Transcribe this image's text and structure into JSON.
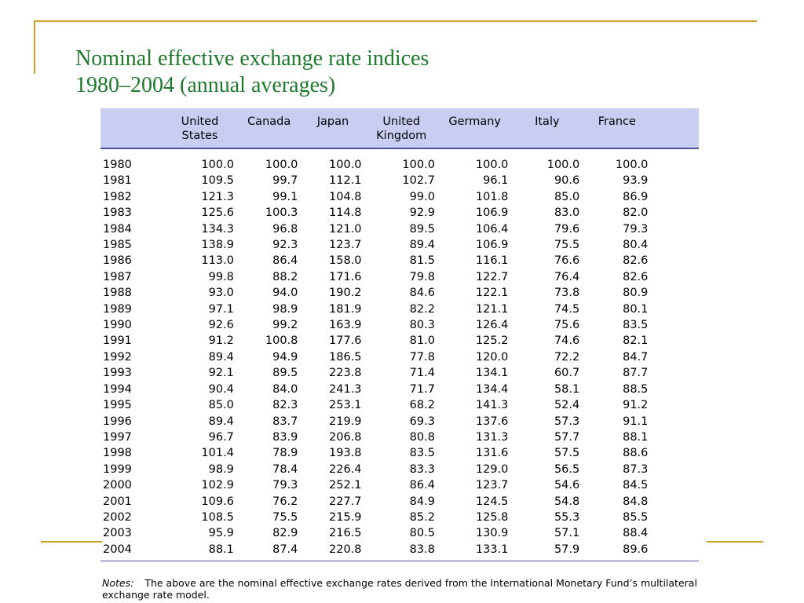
{
  "title": {
    "line1": "Nominal effective exchange rate indices",
    "line2": "1980–2004 (annual averages)"
  },
  "table": {
    "headers": [
      {
        "line1": "United",
        "line2": "States"
      },
      {
        "line1": "Canada",
        "line2": ""
      },
      {
        "line1": "Japan",
        "line2": ""
      },
      {
        "line1": "United",
        "line2": "Kingdom"
      },
      {
        "line1": "Germany",
        "line2": ""
      },
      {
        "line1": "Italy",
        "line2": ""
      },
      {
        "line1": "France",
        "line2": ""
      }
    ],
    "rows": [
      [
        "1980",
        "100.0",
        "100.0",
        "100.0",
        "100.0",
        "100.0",
        "100.0",
        "100.0"
      ],
      [
        "1981",
        "109.5",
        "99.7",
        "112.1",
        "102.7",
        "96.1",
        "90.6",
        "93.9"
      ],
      [
        "1982",
        "121.3",
        "99.1",
        "104.8",
        "99.0",
        "101.8",
        "85.0",
        "86.9"
      ],
      [
        "1983",
        "125.6",
        "100.3",
        "114.8",
        "92.9",
        "106.9",
        "83.0",
        "82.0"
      ],
      [
        "1984",
        "134.3",
        "96.8",
        "121.0",
        "89.5",
        "106.4",
        "79.6",
        "79.3"
      ],
      [
        "1985",
        "138.9",
        "92.3",
        "123.7",
        "89.4",
        "106.9",
        "75.5",
        "80.4"
      ],
      [
        "1986",
        "113.0",
        "86.4",
        "158.0",
        "81.5",
        "116.1",
        "76.6",
        "82.6"
      ],
      [
        "1987",
        "99.8",
        "88.2",
        "171.6",
        "79.8",
        "122.7",
        "76.4",
        "82.6"
      ],
      [
        "1988",
        "93.0",
        "94.0",
        "190.2",
        "84.6",
        "122.1",
        "73.8",
        "80.9"
      ],
      [
        "1989",
        "97.1",
        "98.9",
        "181.9",
        "82.2",
        "121.1",
        "74.5",
        "80.1"
      ],
      [
        "1990",
        "92.6",
        "99.2",
        "163.9",
        "80.3",
        "126.4",
        "75.6",
        "83.5"
      ],
      [
        "1991",
        "91.2",
        "100.8",
        "177.6",
        "81.0",
        "125.2",
        "74.6",
        "82.1"
      ],
      [
        "1992",
        "89.4",
        "94.9",
        "186.5",
        "77.8",
        "120.0",
        "72.2",
        "84.7"
      ],
      [
        "1993",
        "92.1",
        "89.5",
        "223.8",
        "71.4",
        "134.1",
        "60.7",
        "87.7"
      ],
      [
        "1994",
        "90.4",
        "84.0",
        "241.3",
        "71.7",
        "134.4",
        "58.1",
        "88.5"
      ],
      [
        "1995",
        "85.0",
        "82.3",
        "253.1",
        "68.2",
        "141.3",
        "52.4",
        "91.2"
      ],
      [
        "1996",
        "89.4",
        "83.7",
        "219.9",
        "69.3",
        "137.6",
        "57.3",
        "91.1"
      ],
      [
        "1997",
        "96.7",
        "83.9",
        "206.8",
        "80.8",
        "131.3",
        "57.7",
        "88.1"
      ],
      [
        "1998",
        "101.4",
        "78.9",
        "193.8",
        "83.5",
        "131.6",
        "57.5",
        "88.6"
      ],
      [
        "1999",
        "98.9",
        "78.4",
        "226.4",
        "83.3",
        "129.0",
        "56.5",
        "87.3"
      ],
      [
        "2000",
        "102.9",
        "79.3",
        "252.1",
        "86.4",
        "123.7",
        "54.6",
        "84.5"
      ],
      [
        "2001",
        "109.6",
        "76.2",
        "227.7",
        "84.9",
        "124.5",
        "54.8",
        "84.8"
      ],
      [
        "2002",
        "108.5",
        "75.5",
        "215.9",
        "85.2",
        "125.8",
        "55.3",
        "85.5"
      ],
      [
        "2003",
        "95.9",
        "82.9",
        "216.5",
        "80.5",
        "130.9",
        "57.1",
        "88.4"
      ],
      [
        "2004",
        "88.1",
        "87.4",
        "220.8",
        "83.8",
        "133.1",
        "57.9",
        "89.6"
      ]
    ]
  },
  "notes": {
    "label": "Notes:",
    "text": "The above are the nominal effective exchange rates derived from the International Monetary Fund’s multilateral exchange rate model."
  },
  "colors": {
    "title": "#1f7a2e",
    "header_bg": "#c9cdf2",
    "rule": "#4a4fa0",
    "frame": "#c9a227"
  }
}
